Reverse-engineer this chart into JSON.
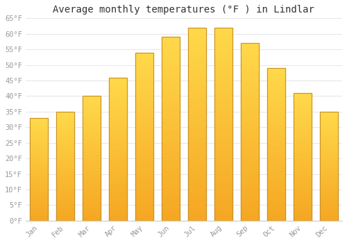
{
  "title": "Average monthly temperatures (°F ) in Lindlar",
  "months": [
    "Jan",
    "Feb",
    "Mar",
    "Apr",
    "May",
    "Jun",
    "Jul",
    "Aug",
    "Sep",
    "Oct",
    "Nov",
    "Dec"
  ],
  "values": [
    33,
    35,
    40,
    46,
    54,
    59,
    62,
    62,
    57,
    49,
    41,
    35
  ],
  "bar_color_bottom": "#F5A623",
  "bar_color_top": "#FFD94A",
  "bar_edge_color": "#C8922A",
  "ylim": [
    0,
    65
  ],
  "yticks": [
    0,
    5,
    10,
    15,
    20,
    25,
    30,
    35,
    40,
    45,
    50,
    55,
    60,
    65
  ],
  "ytick_labels": [
    "0°F",
    "5°F",
    "10°F",
    "15°F",
    "20°F",
    "25°F",
    "30°F",
    "35°F",
    "40°F",
    "45°F",
    "50°F",
    "55°F",
    "60°F",
    "65°F"
  ],
  "background_color": "#FFFFFF",
  "plot_bg_color": "#FFFFFF",
  "grid_color": "#E8E8E8",
  "tick_label_color": "#999999",
  "title_color": "#333333",
  "title_fontsize": 10,
  "tick_fontsize": 7.5,
  "bar_width": 0.7
}
